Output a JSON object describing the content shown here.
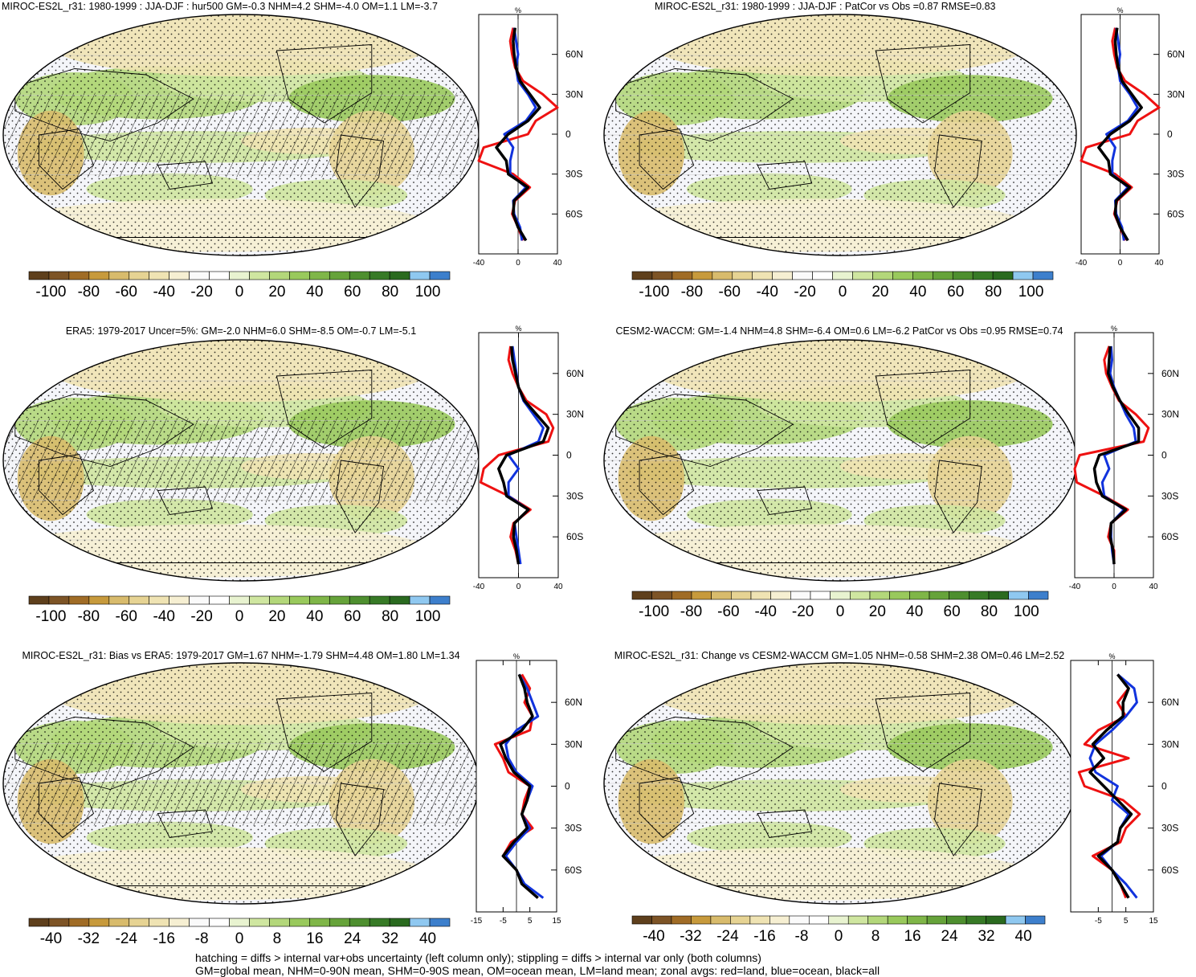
{
  "figure": {
    "footer_line1": "hatching = diffs > internal var+obs uncertainty (left column only); stippling = diffs > internal var only (both columns)",
    "footer_line2": "GM=global mean, NHM=0-90N mean, SHM=0-90S mean, OM=ocean mean, LM=land mean; zonal avgs: red=land, blue=ocean, black=all"
  },
  "colors": {
    "land": "#ee1111",
    "ocean": "#1133dd",
    "all": "#000000",
    "palette": [
      "#5e3f1c",
      "#7d5426",
      "#a06c26",
      "#c79a3c",
      "#d8bb6c",
      "#e6d393",
      "#efe3b3",
      "#f6efd2",
      "#fafafa",
      "#ffffff",
      "#e8f3d0",
      "#cfe6a0",
      "#b3d77a",
      "#99c95c",
      "#7fb648",
      "#66a33a",
      "#4e8f2f",
      "#377a26",
      "#2a6a1f",
      "#8fc8f0",
      "#3d7fcc"
    ]
  },
  "chart_data": [
    {
      "type": "heatmap",
      "title": "MIROC-ES2L_r31: 1980-1999 : JJA-DJF : hur500 GM=-0.3 NHM=4.2 SHM=-4.0 OM=1.1 LM=-3.7",
      "colorbar_ticks": [
        "-100",
        "-80",
        "-60",
        "-40",
        "-20",
        "0",
        "20",
        "40",
        "60",
        "80",
        "100"
      ],
      "colorbar_range": [
        -100,
        100
      ],
      "hatched": true,
      "zonal": {
        "unit": "%",
        "xlim": [
          -40,
          40
        ],
        "x_ticks": [
          "-40",
          "0",
          "40"
        ],
        "lat_ticks": [
          "60N",
          "30N",
          "0",
          "30S",
          "60S"
        ],
        "lat": [
          80,
          70,
          60,
          50,
          40,
          30,
          20,
          10,
          0,
          -10,
          -20,
          -30,
          -40,
          -50,
          -60,
          -70,
          -80
        ],
        "land": [
          -5,
          -8,
          -6,
          -3,
          5,
          25,
          40,
          18,
          10,
          -35,
          -40,
          -5,
          12,
          -3,
          -6,
          0,
          5
        ],
        "ocean": [
          -4,
          -2,
          0,
          -2,
          0,
          10,
          18,
          8,
          -14,
          -5,
          -8,
          -8,
          8,
          -5,
          -4,
          2,
          4
        ],
        "all": [
          -3,
          -5,
          -4,
          -2,
          2,
          12,
          22,
          10,
          -10,
          -22,
          -12,
          -10,
          10,
          -4,
          -5,
          0,
          8
        ]
      }
    },
    {
      "type": "heatmap",
      "title": "MIROC-ES2L_r31: 1980-1999 : JJA-DJF : PatCor vs Obs =0.87 RMSE=0.83",
      "colorbar_ticks": [
        "-100",
        "-80",
        "-60",
        "-40",
        "-20",
        "0",
        "20",
        "40",
        "60",
        "80",
        "100"
      ],
      "colorbar_range": [
        -100,
        100
      ],
      "hatched": false,
      "zonal": {
        "unit": "%",
        "xlim": [
          -40,
          40
        ],
        "x_ticks": [
          "-40",
          "0",
          "40"
        ],
        "lat_ticks": [
          "60N",
          "30N",
          "0",
          "30S",
          "60S"
        ],
        "lat": [
          80,
          70,
          60,
          50,
          40,
          30,
          20,
          10,
          0,
          -10,
          -20,
          -30,
          -40,
          -50,
          -60,
          -70,
          -80
        ],
        "land": [
          -5,
          -8,
          -6,
          -3,
          5,
          25,
          40,
          18,
          10,
          -35,
          -40,
          -5,
          12,
          -3,
          -6,
          0,
          5
        ],
        "ocean": [
          -4,
          -2,
          0,
          -2,
          0,
          10,
          18,
          8,
          -14,
          -5,
          -8,
          -8,
          8,
          -5,
          -4,
          2,
          4
        ],
        "all": [
          -3,
          -5,
          -4,
          -2,
          2,
          12,
          22,
          10,
          -10,
          -22,
          -12,
          -10,
          10,
          -4,
          -5,
          0,
          8
        ]
      }
    },
    {
      "type": "heatmap",
      "title": "ERA5: 1979-2017 Uncer=5%: GM=-2.0 NHM=6.0 SHM=-8.5 OM=-0.7 LM=-5.1",
      "colorbar_ticks": [
        "-100",
        "-80",
        "-60",
        "-40",
        "-20",
        "0",
        "20",
        "40",
        "60",
        "80",
        "100"
      ],
      "colorbar_range": [
        -100,
        100
      ],
      "hatched": true,
      "zonal": {
        "unit": "%",
        "xlim": [
          -40,
          40
        ],
        "x_ticks": [
          "-40",
          "0",
          "40"
        ],
        "lat_ticks": [
          "60N",
          "30N",
          "0",
          "30S",
          "60S"
        ],
        "lat": [
          80,
          70,
          60,
          50,
          40,
          30,
          20,
          10,
          0,
          -10,
          -20,
          -30,
          -40,
          -50,
          -60,
          -70,
          -80
        ],
        "land": [
          -8,
          -10,
          -6,
          0,
          8,
          28,
          35,
          30,
          -20,
          -35,
          -38,
          -10,
          12,
          -5,
          -8,
          -3,
          0
        ],
        "ocean": [
          -6,
          -4,
          -2,
          0,
          5,
          15,
          25,
          20,
          -10,
          0,
          -10,
          -10,
          10,
          -4,
          -2,
          0,
          2
        ],
        "all": [
          -7,
          -6,
          -3,
          0,
          6,
          18,
          30,
          25,
          -12,
          -20,
          -15,
          -12,
          10,
          -4,
          -5,
          -2,
          0
        ]
      }
    },
    {
      "type": "heatmap",
      "title": "CESM2-WACCM: GM=-1.4 NHM=4.8 SHM=-6.4 OM=0.6 LM=-6.2 PatCor vs Obs =0.95 RMSE=0.74",
      "colorbar_ticks": [
        "-100",
        "-80",
        "-60",
        "-40",
        "-20",
        "0",
        "20",
        "40",
        "60",
        "80",
        "100"
      ],
      "colorbar_range": [
        -100,
        100
      ],
      "hatched": false,
      "zonal": {
        "unit": "%",
        "xlim": [
          -40,
          40
        ],
        "x_ticks": [
          "-40",
          "0",
          "40"
        ],
        "lat_ticks": [
          "60N",
          "30N",
          "0",
          "30S",
          "60S"
        ],
        "lat": [
          80,
          70,
          60,
          50,
          40,
          30,
          20,
          10,
          0,
          -10,
          -20,
          -30,
          -40,
          -50,
          -60,
          -70,
          -80
        ],
        "land": [
          -5,
          -10,
          -8,
          -2,
          5,
          22,
          35,
          30,
          -35,
          -40,
          -38,
          -10,
          14,
          -3,
          -6,
          0,
          0
        ],
        "ocean": [
          -3,
          -2,
          -4,
          0,
          6,
          12,
          20,
          22,
          -10,
          -5,
          -12,
          -10,
          10,
          -3,
          -3,
          -2,
          0
        ],
        "all": [
          -4,
          -5,
          -6,
          -1,
          6,
          15,
          25,
          25,
          -15,
          -20,
          -18,
          -12,
          12,
          -3,
          -4,
          -1,
          0
        ]
      }
    },
    {
      "type": "heatmap",
      "title": "MIROC-ES2L_r31: Bias vs ERA5: 1979-2017 GM=1.67 NHM=-1.79 SHM=4.48 OM=1.80 LM=1.34",
      "colorbar_ticks": [
        "-40",
        "-32",
        "-24",
        "-16",
        "-8",
        "0",
        "8",
        "16",
        "24",
        "32",
        "40"
      ],
      "colorbar_range": [
        -40,
        40
      ],
      "hatched": true,
      "zonal": {
        "unit": "%",
        "xlim": [
          -15,
          15
        ],
        "x_ticks": [
          "-15",
          "-5",
          "5",
          "15"
        ],
        "lat_ticks": [
          "60N",
          "30N",
          "0",
          "30S",
          "60S"
        ],
        "lat": [
          80,
          70,
          60,
          50,
          40,
          30,
          20,
          10,
          0,
          -10,
          -20,
          -30,
          -40,
          -50,
          -60,
          -70,
          -80
        ],
        "land": [
          2,
          5,
          3,
          6,
          5,
          -8,
          -5,
          -3,
          5,
          3,
          2,
          6,
          -2,
          -5,
          0,
          2,
          8
        ],
        "ocean": [
          1,
          4,
          6,
          8,
          0,
          -4,
          -3,
          0,
          6,
          4,
          2,
          5,
          0,
          -4,
          0,
          3,
          10
        ],
        "all": [
          1,
          3,
          4,
          6,
          2,
          -6,
          -4,
          -1,
          5,
          4,
          2,
          4,
          -1,
          -5,
          0,
          2,
          8
        ]
      }
    },
    {
      "type": "heatmap",
      "title": "MIROC-ES2L_r31: Change vs CESM2-WACCM GM=1.05 NHM=-0.58 SHM=2.38 OM=0.46 LM=2.52",
      "colorbar_ticks": [
        "-40",
        "-32",
        "-24",
        "-16",
        "-8",
        "0",
        "8",
        "16",
        "24",
        "32",
        "40"
      ],
      "colorbar_range": [
        -40,
        40
      ],
      "hatched": false,
      "zonal": {
        "unit": "%",
        "xlim": [
          -15,
          15
        ],
        "x_ticks": [
          "-5",
          "5",
          "15"
        ],
        "lat_ticks": [
          "60N",
          "30N",
          "0",
          "30S",
          "60S"
        ],
        "lat": [
          80,
          70,
          60,
          50,
          40,
          30,
          20,
          10,
          0,
          -10,
          -20,
          -30,
          -40,
          -50,
          -60,
          -70,
          -80
        ],
        "land": [
          2,
          6,
          2,
          5,
          -5,
          -10,
          6,
          -12,
          -10,
          4,
          10,
          5,
          3,
          -7,
          0,
          3,
          5
        ],
        "ocean": [
          2,
          8,
          9,
          5,
          0,
          -6,
          -8,
          -6,
          2,
          0,
          6,
          3,
          2,
          -4,
          0,
          5,
          9
        ],
        "all": [
          2,
          6,
          4,
          4,
          -2,
          -7,
          -3,
          -8,
          -3,
          2,
          7,
          3,
          2,
          -5,
          0,
          3,
          6
        ]
      }
    }
  ]
}
